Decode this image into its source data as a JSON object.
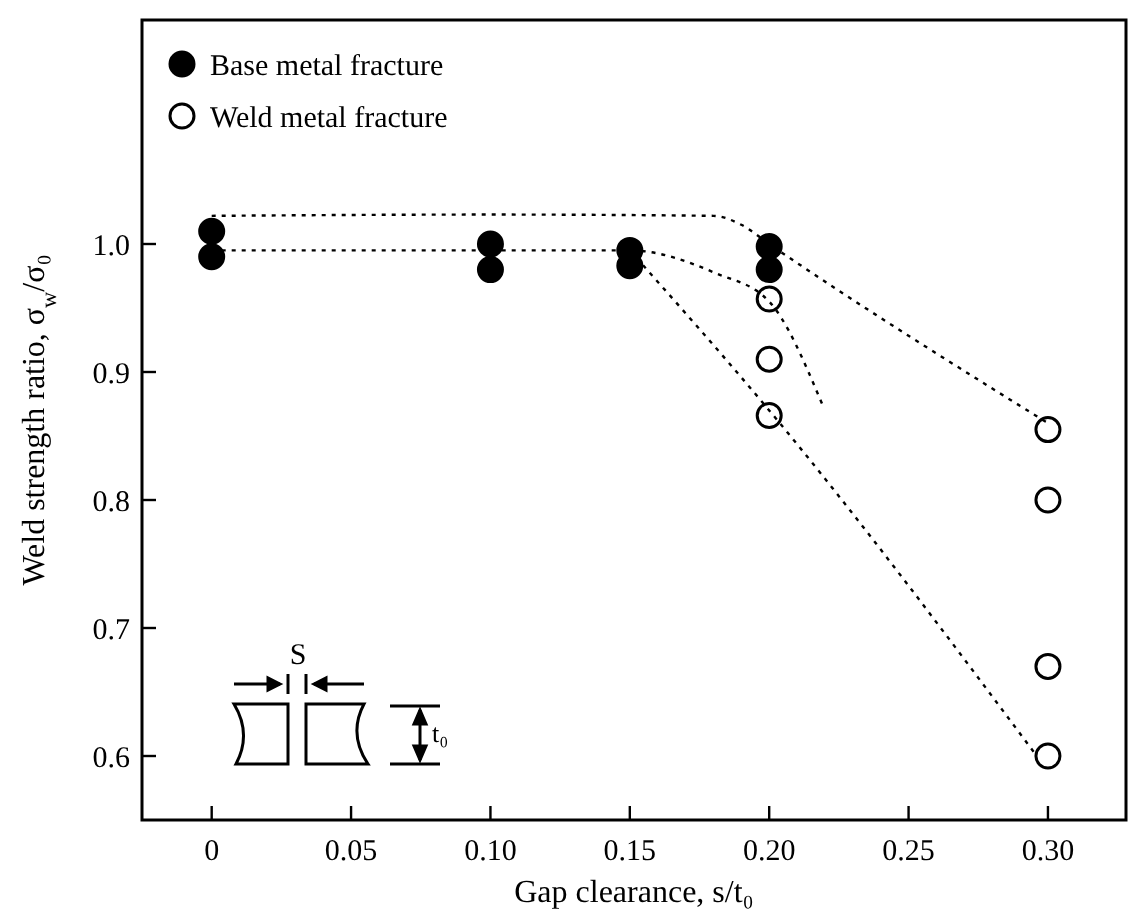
{
  "chart_data": {
    "type": "scatter",
    "xlabel": "Gap clearance, s/t₀",
    "ylabel": "Weld strength ratio, σ$_{w}$/σ₀",
    "xlim": [
      -0.025,
      0.328
    ],
    "ylim": [
      0.55,
      1.175
    ],
    "xticks": [
      0,
      0.05,
      {
        "value": 0.1,
        "label": "0.10"
      },
      0.15,
      {
        "value": 0.2,
        "label": "0.20"
      },
      0.25,
      {
        "value": 0.3,
        "label": "0.30"
      }
    ],
    "yticks": [
      0.6,
      0.7,
      0.8,
      0.9,
      {
        "value": 1,
        "label": "1.0"
      }
    ],
    "grid": false,
    "legend": "top left",
    "marker": "circle",
    "annotations": [
      "S",
      "t₀"
    ],
    "series": [
      {
        "name": "Base metal fracture",
        "color": "#000000",
        "x": [
          0,
          0,
          0.1,
          0.1,
          0.15,
          0.15,
          0.2,
          0.2
        ],
        "values": [
          1.01,
          0.99,
          1.0,
          0.98,
          0.995,
          0.983,
          0.998,
          0.98
        ]
      },
      {
        "name": "Weld metal fracture",
        "color": "#ffffff",
        "x": [
          0.2,
          0.2,
          0.2,
          0.3,
          0.3,
          0.3,
          0.3
        ],
        "values": [
          0.957,
          0.91,
          0.866,
          0.855,
          0.8,
          0.67,
          0.6
        ]
      },
      {
        "type": "line",
        "color": "#000000",
        "line_style": "dotted",
        "marker": "none",
        "x": [
          0,
          0.1,
          0.18,
          0.19,
          0.2,
          0.3
        ],
        "values": [
          1.022,
          1.023,
          1.022,
          1.015,
          1.0,
          0.86
        ]
      },
      {
        "type": "line",
        "color": "#000000",
        "line_style": "dotted",
        "marker": "none",
        "x": [
          0,
          0.1,
          0.15,
          0.181,
          0.2,
          0.219
        ],
        "values": [
          0.995,
          0.995,
          0.995,
          0.977,
          0.955,
          0.875
        ]
      },
      {
        "type": "line",
        "color": "#000000",
        "line_style": "dotted",
        "marker": "none",
        "x": [
          0.15,
          0.2,
          0.296
        ],
        "values": [
          0.995,
          0.87,
          0.6
        ]
      }
    ]
  }
}
